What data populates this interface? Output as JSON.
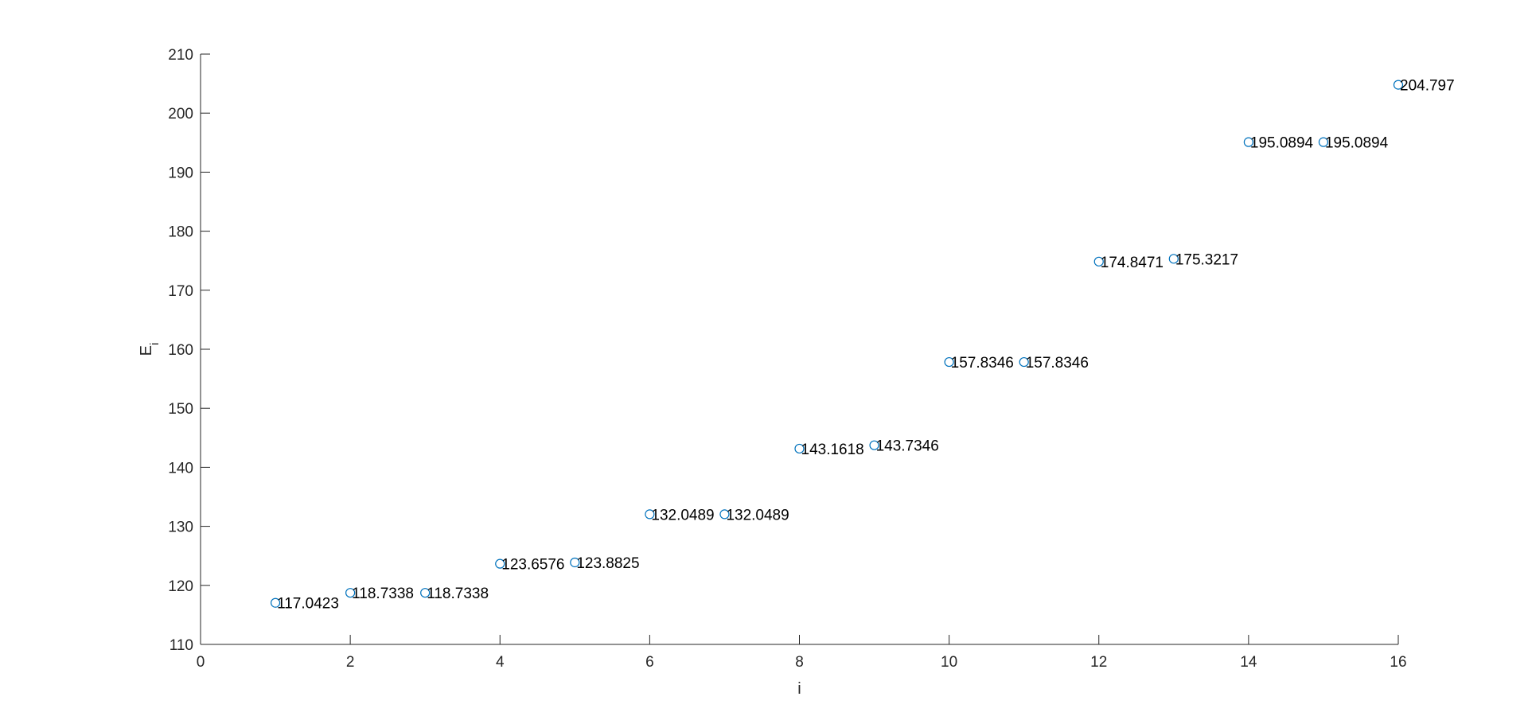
{
  "chart_data": {
    "type": "scatter",
    "title": "",
    "xlabel": "i",
    "ylabel": "E",
    "ylabel_subscript": "i",
    "xlim": [
      0,
      16
    ],
    "ylim": [
      110,
      210
    ],
    "xticks": [
      "0",
      "2",
      "4",
      "6",
      "8",
      "10",
      "12",
      "14",
      "16"
    ],
    "yticks": [
      "110",
      "120",
      "130",
      "140",
      "150",
      "160",
      "170",
      "180",
      "190",
      "200",
      "210"
    ],
    "grid": false,
    "marker": "circle-open",
    "marker_color": "#0072BD",
    "series": [
      {
        "x": [
          1,
          2,
          3,
          4,
          5,
          6,
          7,
          8,
          9,
          10,
          11,
          12,
          13,
          14,
          15,
          16
        ],
        "y": [
          117.0423,
          118.7338,
          118.7338,
          123.6576,
          123.8825,
          132.0489,
          132.0489,
          143.1618,
          143.7346,
          157.8346,
          157.8346,
          174.8471,
          175.3217,
          195.0894,
          195.0894,
          204.797
        ],
        "labels": [
          "117.0423",
          "118.7338",
          "118.7338",
          "123.6576",
          "123.8825",
          "132.0489",
          "132.0489",
          "143.1618",
          "143.7346",
          "157.8346",
          "157.8346",
          "174.8471",
          "175.3217",
          "195.0894",
          "195.0894",
          "204.797"
        ]
      }
    ]
  }
}
